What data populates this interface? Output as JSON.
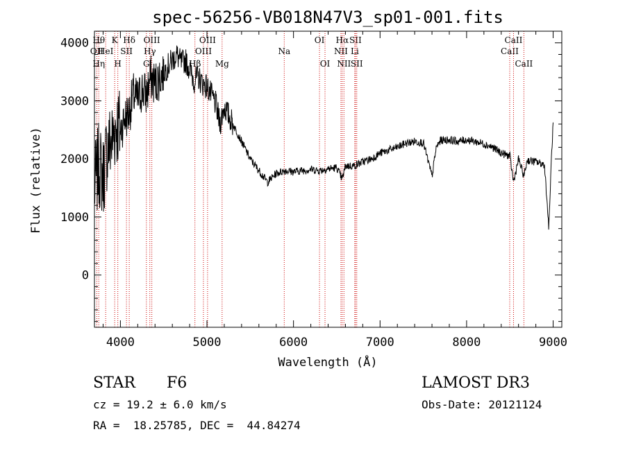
{
  "chart_data": {
    "type": "line",
    "title": "spec-56256-VB018N47V3_sp01-001.fits",
    "xlabel": "Wavelength (Å)",
    "ylabel": "Flux (relative)",
    "xlim": [
      3700,
      9100
    ],
    "ylim": [
      -900,
      4200
    ],
    "x_ticks": [
      4000,
      5000,
      6000,
      7000,
      8000,
      9000
    ],
    "x_tick_labels": [
      "4000",
      "5000",
      "6000",
      "7000",
      "8000",
      "9000"
    ],
    "y_ticks": [
      0,
      1000,
      2000,
      3000,
      4000
    ],
    "y_tick_labels": [
      "0",
      "1000",
      "2000",
      "3000",
      "4000"
    ],
    "grid": false,
    "series": [
      {
        "name": "flux",
        "x": [
          3700,
          3750,
          3800,
          3850,
          3900,
          3950,
          4000,
          4050,
          4100,
          4150,
          4200,
          4250,
          4300,
          4350,
          4400,
          4450,
          4500,
          4550,
          4600,
          4650,
          4700,
          4750,
          4800,
          4850,
          4900,
          4950,
          5000,
          5050,
          5100,
          5150,
          5200,
          5250,
          5300,
          5400,
          5500,
          5600,
          5700,
          5800,
          5900,
          6000,
          6100,
          6200,
          6300,
          6400,
          6500,
          6563,
          6600,
          6700,
          6800,
          6900,
          7000,
          7100,
          7200,
          7300,
          7400,
          7500,
          7600,
          7650,
          7700,
          7800,
          7900,
          8000,
          8100,
          8200,
          8300,
          8400,
          8500,
          8542,
          8600,
          8662,
          8700,
          8800,
          8900,
          8950,
          8980,
          9000
        ],
        "values": [
          1500,
          1900,
          1700,
          2200,
          2300,
          2600,
          2500,
          2700,
          2800,
          3100,
          3000,
          3200,
          3100,
          3400,
          3300,
          3400,
          3500,
          3600,
          3700,
          3800,
          3650,
          3700,
          3550,
          3350,
          3400,
          3300,
          3250,
          3100,
          2950,
          2600,
          2900,
          2750,
          2600,
          2300,
          2000,
          1800,
          1600,
          1750,
          1800,
          1780,
          1800,
          1820,
          1800,
          1830,
          1850,
          1650,
          1880,
          1880,
          1950,
          2000,
          2100,
          2150,
          2200,
          2270,
          2300,
          2280,
          1700,
          2200,
          2320,
          2330,
          2300,
          2330,
          2300,
          2260,
          2200,
          2100,
          2050,
          1600,
          2000,
          1700,
          1980,
          1950,
          1900,
          800,
          2000,
          2600
        ]
      }
    ],
    "lines": [
      {
        "wl": 3727,
        "rows": [
          {
            "label": "OII",
            "row": 2
          }
        ]
      },
      {
        "wl": 3750,
        "rows": [
          {
            "label": "Hθ",
            "row": 1
          },
          {
            "label": "Hη",
            "row": 3
          }
        ]
      },
      {
        "wl": 3830,
        "rows": [
          {
            "label": "HeI",
            "row": 2
          }
        ]
      },
      {
        "wl": 3934,
        "rows": [
          {
            "label": "K",
            "row": 1
          }
        ]
      },
      {
        "wl": 3970,
        "rows": [
          {
            "label": "H",
            "row": 3
          }
        ]
      },
      {
        "wl": 4070,
        "rows": [
          {
            "label": "SII",
            "row": 2
          }
        ]
      },
      {
        "wl": 4102,
        "rows": [
          {
            "label": "Hδ",
            "row": 1
          }
        ]
      },
      {
        "wl": 4300,
        "rows": [
          {
            "label": "G",
            "row": 3
          }
        ]
      },
      {
        "wl": 4340,
        "rows": [
          {
            "label": "Hγ",
            "row": 2
          }
        ]
      },
      {
        "wl": 4363,
        "rows": [
          {
            "label": "OIII",
            "row": 1
          }
        ]
      },
      {
        "wl": 4861,
        "rows": [
          {
            "label": "Hβ",
            "row": 3
          }
        ]
      },
      {
        "wl": 4959,
        "rows": [
          {
            "label": "OIII",
            "row": 2
          }
        ]
      },
      {
        "wl": 5007,
        "rows": [
          {
            "label": "OIII",
            "row": 1
          }
        ]
      },
      {
        "wl": 5175,
        "rows": [
          {
            "label": "Mg",
            "row": 3
          }
        ]
      },
      {
        "wl": 5893,
        "rows": [
          {
            "label": "Na",
            "row": 2
          }
        ]
      },
      {
        "wl": 6300,
        "rows": [
          {
            "label": "OI",
            "row": 1
          }
        ]
      },
      {
        "wl": 6364,
        "rows": [
          {
            "label": "OI",
            "row": 3
          }
        ]
      },
      {
        "wl": 6548,
        "rows": [
          {
            "label": "NII",
            "row": 2
          }
        ]
      },
      {
        "wl": 6563,
        "rows": [
          {
            "label": "Hα",
            "row": 1
          }
        ]
      },
      {
        "wl": 6583,
        "rows": [
          {
            "label": "NII",
            "row": 3
          }
        ]
      },
      {
        "wl": 6708,
        "rows": [
          {
            "label": "Li",
            "row": 2
          }
        ]
      },
      {
        "wl": 6716,
        "rows": [
          {
            "label": "SII",
            "row": 1
          }
        ]
      },
      {
        "wl": 6731,
        "rows": [
          {
            "label": "SII",
            "row": 3
          }
        ]
      },
      {
        "wl": 8498,
        "rows": [
          {
            "label": "CaII",
            "row": 2
          }
        ]
      },
      {
        "wl": 8542,
        "rows": [
          {
            "label": "CaII",
            "row": 1
          }
        ]
      },
      {
        "wl": 8662,
        "rows": [
          {
            "label": "CaII",
            "row": 3
          }
        ]
      }
    ]
  },
  "info": {
    "class": "STAR",
    "subclass": "F6",
    "survey": "LAMOST DR3",
    "cz": "cz = 19.2 ± 6.0 km/s",
    "obs_date": "Obs-Date: 20121124",
    "radec": "RA =  18.25785, DEC =  44.84274"
  },
  "colors": {
    "axis": "#000000",
    "spectrum": "#000000",
    "line_marker": "#cc0000"
  }
}
